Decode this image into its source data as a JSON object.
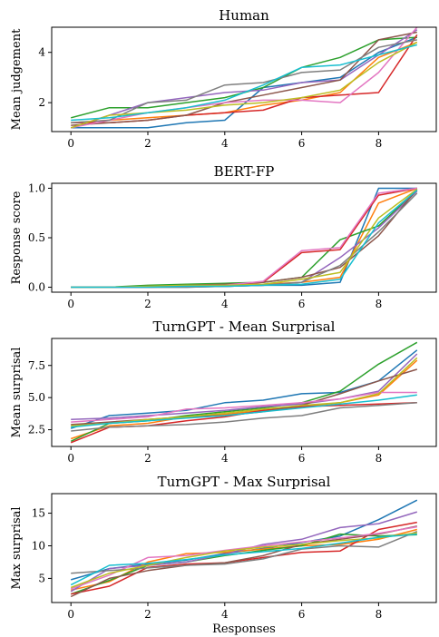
{
  "chart_data": [
    {
      "type": "line",
      "title": "Human",
      "ylabel": "Mean judgement",
      "xlabel": "",
      "xlim": [
        -0.5,
        9.5
      ],
      "ylim": [
        0.85,
        5.0
      ],
      "xticks": [
        "0",
        "2",
        "4",
        "6",
        "8"
      ],
      "yticks": [
        {
          "v": 2,
          "label": "2"
        },
        {
          "v": 4,
          "label": "4"
        }
      ],
      "x": [
        0,
        1,
        2,
        3,
        4,
        5,
        6,
        7,
        8,
        9
      ],
      "series": [
        {
          "color": "#1f77b4",
          "values": [
            1.0,
            1.0,
            1.0,
            1.2,
            1.3,
            2.6,
            2.8,
            3.0,
            4.0,
            4.6
          ]
        },
        {
          "color": "#ff7f0e",
          "values": [
            1.2,
            1.3,
            1.4,
            1.5,
            1.6,
            1.9,
            2.1,
            2.4,
            3.8,
            4.4
          ]
        },
        {
          "color": "#2ca02c",
          "values": [
            1.4,
            1.8,
            1.8,
            2.0,
            2.2,
            2.6,
            3.4,
            3.8,
            4.5,
            4.6
          ]
        },
        {
          "color": "#d62728",
          "values": [
            1.2,
            1.2,
            1.3,
            1.5,
            1.6,
            1.7,
            2.2,
            2.3,
            2.4,
            4.7
          ]
        },
        {
          "color": "#9467bd",
          "values": [
            1.0,
            1.5,
            2.0,
            2.2,
            2.4,
            2.5,
            2.8,
            2.9,
            3.9,
            4.9
          ]
        },
        {
          "color": "#8c564b",
          "values": [
            1.1,
            1.2,
            1.3,
            1.5,
            2.0,
            2.3,
            2.6,
            2.9,
            4.5,
            4.8
          ]
        },
        {
          "color": "#e377c2",
          "values": [
            1.0,
            1.3,
            1.6,
            1.8,
            2.0,
            2.1,
            2.1,
            2.0,
            3.2,
            5.0
          ]
        },
        {
          "color": "#7f7f7f",
          "values": [
            1.2,
            1.3,
            2.0,
            2.1,
            2.7,
            2.8,
            3.2,
            3.3,
            4.2,
            4.5
          ]
        },
        {
          "color": "#bcbd22",
          "values": [
            1.0,
            1.5,
            1.6,
            1.7,
            1.9,
            2.0,
            2.2,
            2.5,
            3.6,
            4.4
          ]
        },
        {
          "color": "#17becf",
          "values": [
            1.3,
            1.4,
            1.6,
            1.8,
            2.1,
            2.7,
            3.4,
            3.5,
            3.9,
            4.3
          ]
        }
      ]
    },
    {
      "type": "line",
      "title": "BERT-FP",
      "ylabel": "Response score",
      "xlabel": "",
      "xlim": [
        -0.5,
        9.5
      ],
      "ylim": [
        -0.05,
        1.05
      ],
      "xticks": [
        "0",
        "2",
        "4",
        "6",
        "8"
      ],
      "yticks": [
        {
          "v": 0.0,
          "label": "0.0"
        },
        {
          "v": 0.5,
          "label": "0.5"
        },
        {
          "v": 1.0,
          "label": "1.0"
        }
      ],
      "x": [
        0,
        1,
        2,
        3,
        4,
        5,
        6,
        7,
        8,
        9
      ],
      "series": [
        {
          "color": "#1f77b4",
          "values": [
            0.0,
            0.0,
            0.0,
            0.0,
            0.01,
            0.02,
            0.02,
            0.05,
            1.0,
            1.0
          ]
        },
        {
          "color": "#ff7f0e",
          "values": [
            0.0,
            0.0,
            0.01,
            0.01,
            0.02,
            0.03,
            0.05,
            0.1,
            0.85,
            1.0
          ]
        },
        {
          "color": "#2ca02c",
          "values": [
            0.0,
            0.0,
            0.02,
            0.03,
            0.04,
            0.05,
            0.1,
            0.48,
            0.62,
            0.98
          ]
        },
        {
          "color": "#d62728",
          "values": [
            0.0,
            0.0,
            0.0,
            0.01,
            0.02,
            0.05,
            0.35,
            0.38,
            0.93,
            1.0
          ]
        },
        {
          "color": "#9467bd",
          "values": [
            0.0,
            0.0,
            0.0,
            0.01,
            0.01,
            0.02,
            0.05,
            0.3,
            0.6,
            0.97
          ]
        },
        {
          "color": "#8c564b",
          "values": [
            0.0,
            0.0,
            0.01,
            0.02,
            0.03,
            0.05,
            0.1,
            0.2,
            0.52,
            0.99
          ]
        },
        {
          "color": "#e377c2",
          "values": [
            0.0,
            0.0,
            0.0,
            0.01,
            0.02,
            0.06,
            0.37,
            0.4,
            0.95,
            1.0
          ]
        },
        {
          "color": "#7f7f7f",
          "values": [
            0.0,
            0.0,
            0.0,
            0.0,
            0.01,
            0.02,
            0.05,
            0.22,
            0.56,
            0.95
          ]
        },
        {
          "color": "#bcbd22",
          "values": [
            0.0,
            0.0,
            0.01,
            0.02,
            0.02,
            0.03,
            0.08,
            0.15,
            0.7,
            0.99
          ]
        },
        {
          "color": "#17becf",
          "values": [
            0.0,
            0.0,
            0.0,
            0.01,
            0.01,
            0.02,
            0.03,
            0.08,
            0.65,
            0.98
          ]
        }
      ]
    },
    {
      "type": "line",
      "title": "TurnGPT - Mean Surprisal",
      "ylabel": "Mean surprisal",
      "xlabel": "",
      "xlim": [
        -0.5,
        9.5
      ],
      "ylim": [
        1.2,
        9.6
      ],
      "xticks": [
        "0",
        "2",
        "4",
        "6",
        "8"
      ],
      "yticks": [
        {
          "v": 2.5,
          "label": "2.5"
        },
        {
          "v": 5.0,
          "label": "5.0"
        },
        {
          "v": 7.5,
          "label": "7.5"
        }
      ],
      "x": [
        0,
        1,
        2,
        3,
        4,
        5,
        6,
        7,
        8,
        9
      ],
      "series": [
        {
          "color": "#1f77b4",
          "values": [
            2.6,
            3.6,
            3.8,
            4.0,
            4.6,
            4.8,
            5.3,
            5.4,
            6.3,
            8.7
          ]
        },
        {
          "color": "#ff7f0e",
          "values": [
            1.8,
            2.8,
            3.0,
            3.5,
            3.7,
            4.0,
            4.3,
            4.6,
            5.2,
            7.9
          ]
        },
        {
          "color": "#2ca02c",
          "values": [
            1.6,
            3.0,
            3.2,
            3.6,
            3.9,
            4.2,
            4.6,
            5.5,
            7.6,
            9.3
          ]
        },
        {
          "color": "#d62728",
          "values": [
            1.5,
            2.7,
            2.8,
            3.2,
            3.5,
            4.0,
            4.3,
            4.4,
            4.5,
            4.6
          ]
        },
        {
          "color": "#9467bd",
          "values": [
            3.3,
            3.4,
            3.6,
            3.8,
            4.0,
            4.3,
            4.5,
            4.9,
            5.5,
            8.4
          ]
        },
        {
          "color": "#8c564b",
          "values": [
            2.9,
            3.1,
            3.3,
            3.5,
            3.6,
            3.9,
            4.4,
            5.3,
            6.3,
            7.2
          ]
        },
        {
          "color": "#e377c2",
          "values": [
            3.1,
            3.3,
            3.5,
            4.1,
            4.2,
            4.4,
            4.6,
            4.9,
            5.4,
            5.4
          ]
        },
        {
          "color": "#7f7f7f",
          "values": [
            2.4,
            2.7,
            2.8,
            2.9,
            3.1,
            3.4,
            3.6,
            4.2,
            4.4,
            4.6
          ]
        },
        {
          "color": "#bcbd22",
          "values": [
            2.8,
            3.0,
            3.3,
            3.5,
            3.8,
            4.1,
            4.4,
            4.6,
            5.3,
            8.1
          ]
        },
        {
          "color": "#17becf",
          "values": [
            2.7,
            3.0,
            3.2,
            3.4,
            3.6,
            3.9,
            4.2,
            4.5,
            4.8,
            5.2
          ]
        }
      ]
    },
    {
      "type": "line",
      "title": "TurnGPT - Max Surprisal",
      "ylabel": "Max surprisal",
      "xlabel": "Responses",
      "xlim": [
        -0.5,
        9.5
      ],
      "ylim": [
        1.3,
        18.0
      ],
      "xticks": [
        "0",
        "2",
        "4",
        "6",
        "8"
      ],
      "yticks": [
        {
          "v": 5,
          "label": "5"
        },
        {
          "v": 10,
          "label": "10"
        },
        {
          "v": 15,
          "label": "15"
        }
      ],
      "x": [
        0,
        1,
        2,
        3,
        4,
        5,
        6,
        7,
        8,
        9
      ],
      "series": [
        {
          "color": "#1f77b4",
          "values": [
            4.8,
            6.5,
            7.2,
            7.8,
            8.8,
            9.6,
            10.5,
            11.5,
            14.0,
            17.0
          ]
        },
        {
          "color": "#ff7f0e",
          "values": [
            3.2,
            4.5,
            7.5,
            8.8,
            9.0,
            9.5,
            10.0,
            10.2,
            11.0,
            12.5
          ]
        },
        {
          "color": "#2ca02c",
          "values": [
            2.6,
            4.7,
            7.0,
            7.5,
            8.5,
            9.3,
            10.0,
            11.8,
            11.5,
            11.7
          ]
        },
        {
          "color": "#d62728",
          "values": [
            2.6,
            3.8,
            6.7,
            7.2,
            7.4,
            8.2,
            9.0,
            9.2,
            12.5,
            13.6
          ]
        },
        {
          "color": "#9467bd",
          "values": [
            3.0,
            6.5,
            7.0,
            7.5,
            8.7,
            10.2,
            11.0,
            12.8,
            13.4,
            15.2
          ]
        },
        {
          "color": "#8c564b",
          "values": [
            2.2,
            5.0,
            6.2,
            7.0,
            7.4,
            8.5,
            10.2,
            11.0,
            11.8,
            13.0
          ]
        },
        {
          "color": "#e377c2",
          "values": [
            3.4,
            5.5,
            8.2,
            8.5,
            9.3,
            10.0,
            10.6,
            11.2,
            11.9,
            12.9
          ]
        },
        {
          "color": "#7f7f7f",
          "values": [
            5.8,
            6.2,
            6.6,
            7.0,
            7.2,
            8.0,
            9.5,
            10.0,
            9.8,
            12.2
          ]
        },
        {
          "color": "#bcbd22",
          "values": [
            3.6,
            5.8,
            7.0,
            8.2,
            9.2,
            9.8,
            10.2,
            10.8,
            11.2,
            12.0
          ]
        },
        {
          "color": "#17becf",
          "values": [
            4.0,
            7.0,
            7.3,
            7.9,
            8.6,
            9.1,
            9.6,
            10.4,
            11.3,
            11.8
          ]
        }
      ]
    }
  ]
}
